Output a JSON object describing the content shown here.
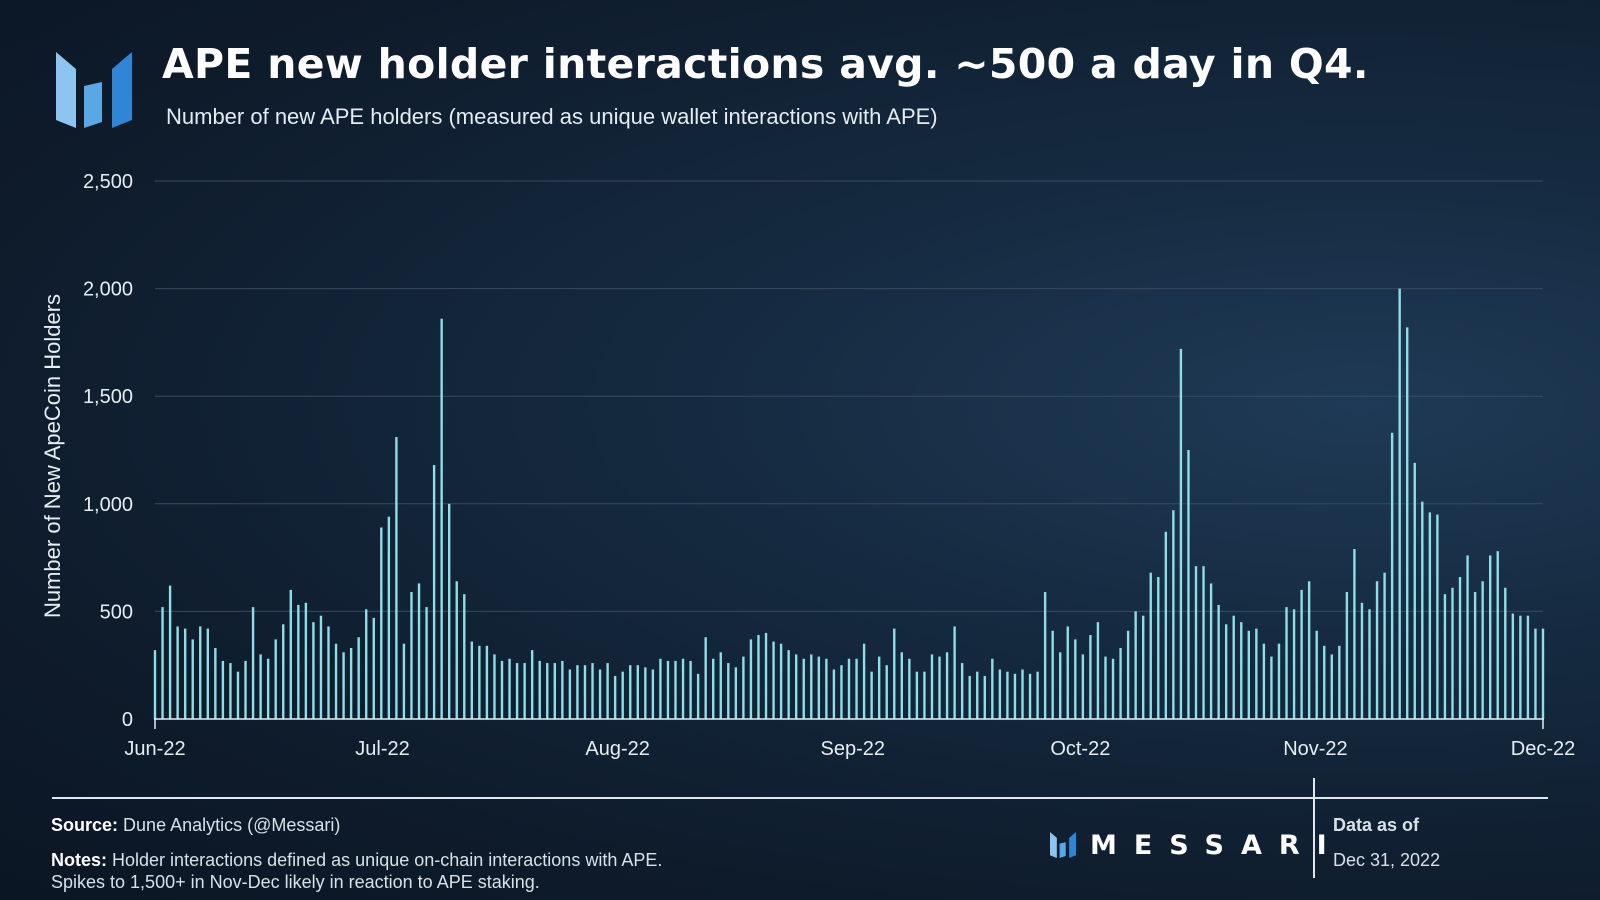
{
  "header": {
    "title": "APE new holder interactions avg. ~500 a day in Q4.",
    "subtitle": "Number of new APE holders (measured as unique wallet interactions with APE)"
  },
  "colors": {
    "bar": "#8fdde6",
    "grid": "#3a4a5c",
    "axis": "#e6edf3",
    "logo_light": "#8ec5f0",
    "logo_dark": "#2f86d6"
  },
  "chart_data": {
    "type": "bar",
    "title": "APE new holder interactions avg. ~500 a day in Q4.",
    "subtitle": "Number of new APE holders (measured as unique wallet interactions with APE)",
    "xlabel": "",
    "ylabel": "Number of New ApeCoin Holders",
    "ylim": [
      0,
      2500
    ],
    "yticks": [
      0,
      500,
      1000,
      1500,
      2000,
      2500
    ],
    "ytick_labels": [
      "0",
      "500",
      "1,000",
      "1,500",
      "2,000",
      "2,500"
    ],
    "x_start": "2022-06-01",
    "x_end": "2022-12-01",
    "xtick_labels": [
      "Jun-22",
      "Jul-22",
      "Aug-22",
      "Sep-22",
      "Oct-22",
      "Nov-22",
      "Dec-22"
    ],
    "xtick_day_offsets": [
      0,
      30,
      61,
      92,
      122,
      153,
      183
    ],
    "grid": true,
    "legend": "none",
    "series": [
      {
        "name": "New ApeCoin Holders",
        "values": [
          320,
          520,
          620,
          430,
          420,
          370,
          430,
          420,
          330,
          270,
          260,
          220,
          270,
          520,
          300,
          280,
          370,
          440,
          600,
          530,
          540,
          450,
          480,
          430,
          350,
          310,
          330,
          380,
          510,
          470,
          890,
          940,
          1310,
          350,
          590,
          630,
          520,
          1180,
          1860,
          1000,
          640,
          580,
          360,
          340,
          340,
          300,
          270,
          280,
          260,
          260,
          320,
          270,
          260,
          260,
          270,
          230,
          250,
          250,
          260,
          230,
          260,
          200,
          220,
          250,
          250,
          240,
          230,
          280,
          270,
          270,
          280,
          270,
          210,
          380,
          280,
          310,
          260,
          240,
          290,
          370,
          390,
          400,
          360,
          350,
          320,
          300,
          280,
          300,
          290,
          280,
          230,
          250,
          280,
          280,
          350,
          220,
          290,
          250,
          420,
          310,
          280,
          220,
          220,
          300,
          290,
          310,
          430,
          260,
          200,
          220,
          200,
          280,
          230,
          220,
          210,
          230,
          210,
          220,
          590,
          410,
          310,
          430,
          370,
          300,
          390,
          450,
          290,
          280,
          330,
          410,
          500,
          480,
          680,
          660,
          870,
          970,
          1720,
          1250,
          710,
          710,
          630,
          530,
          440,
          480,
          450,
          410,
          420,
          350,
          290,
          350,
          520,
          510,
          600,
          640,
          410,
          340,
          300,
          340,
          590,
          790,
          540,
          510,
          640,
          680,
          1330,
          2000,
          1820,
          1190,
          1010,
          960,
          950,
          580,
          610,
          660,
          760,
          590,
          640,
          760,
          780,
          610,
          490,
          480,
          480,
          420,
          420
        ]
      }
    ],
    "annotations": []
  },
  "footer": {
    "source_label": "Source:",
    "source_text": "Dune Analytics (@Messari)",
    "notes_label": "Notes:",
    "notes_line1": "Holder interactions defined as unique on-chain interactions with APE.",
    "notes_line2": "Spikes to 1,500+ in Nov-Dec likely in reaction to APE staking.",
    "brand": "MESSARI",
    "asof_label": "Data as of",
    "asof_date": "Dec 31, 2022"
  }
}
